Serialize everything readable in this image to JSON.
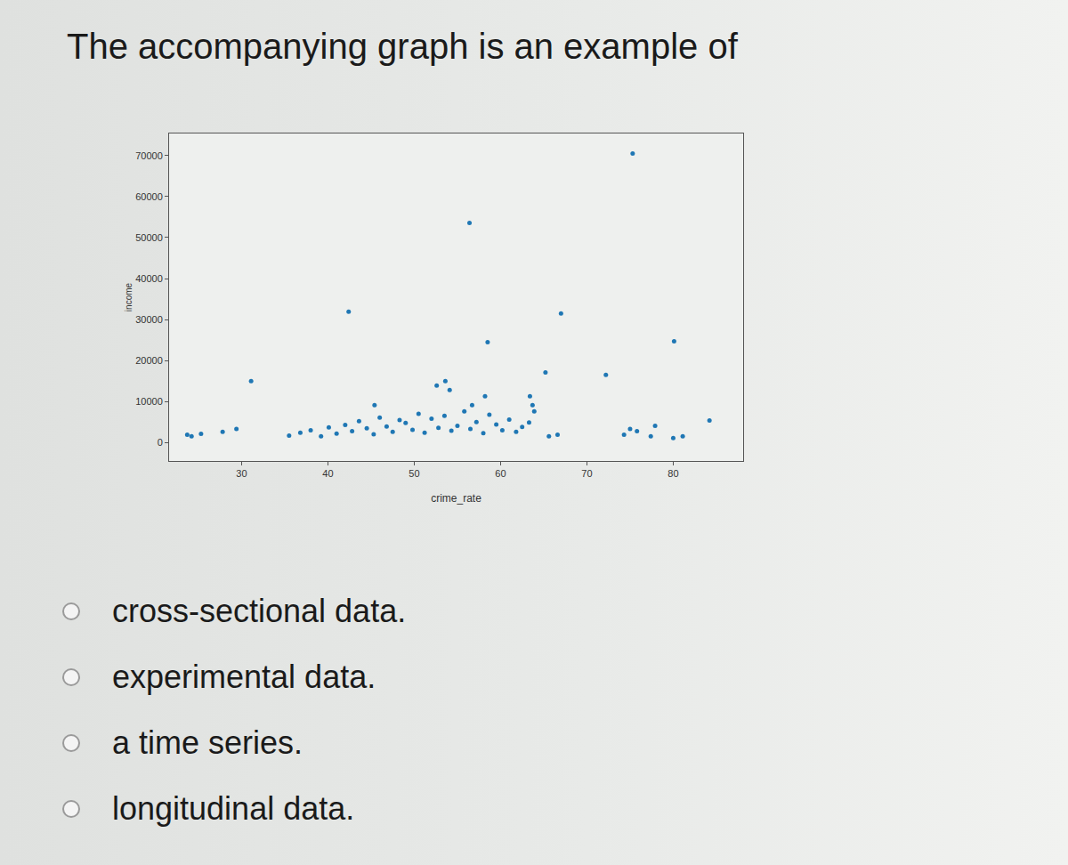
{
  "question": "The accompanying graph is an example of",
  "options": [
    "cross-sectional data.",
    "experimental data.",
    "a time series.",
    "longitudinal data."
  ],
  "chart_data": {
    "type": "scatter",
    "x_label": "crime_rate",
    "y_label": "income",
    "color": "#1f77b4",
    "marker": "circle",
    "grid": false,
    "xlim": [
      21.6,
      88.1
    ],
    "ylim": [
      -4500,
      75400
    ],
    "xticks": [
      30,
      40,
      50,
      60,
      70,
      80
    ],
    "yticks": [
      0,
      10000,
      20000,
      30000,
      40000,
      50000,
      60000,
      70000
    ],
    "x": [
      75.3,
      56.4,
      42.4,
      67.0,
      58.5,
      80.1,
      31.1,
      65.2,
      72.2,
      52.6,
      53.6,
      54.1,
      58.2,
      63.4,
      63.7,
      63.9,
      45.4,
      56.7,
      23.7,
      24.2,
      25.3,
      27.8,
      29.4,
      35.5,
      36.8,
      38.0,
      39.2,
      40.1,
      41.0,
      42.0,
      42.8,
      43.6,
      44.5,
      45.3,
      46.0,
      46.8,
      47.5,
      48.3,
      49.0,
      49.8,
      50.5,
      51.2,
      52.0,
      52.8,
      53.5,
      54.3,
      55.0,
      55.8,
      56.5,
      57.2,
      58.0,
      58.7,
      59.5,
      60.2,
      61.0,
      61.8,
      62.5,
      63.3,
      65.6,
      66.6,
      74.3,
      75.0,
      75.8,
      77.4,
      77.9,
      80.0,
      81.1,
      84.2
    ],
    "values": [
      70500,
      53600,
      31900,
      31500,
      24500,
      24700,
      15000,
      17100,
      16500,
      13900,
      15000,
      12800,
      11300,
      11300,
      9100,
      7600,
      9100,
      9100,
      1900,
      1500,
      2100,
      2600,
      3300,
      1700,
      2400,
      3000,
      1500,
      3700,
      2200,
      4300,
      2800,
      5200,
      3500,
      2000,
      6100,
      3900,
      2600,
      5500,
      4800,
      3100,
      7000,
      2400,
      5800,
      3600,
      6500,
      2900,
      4100,
      7600,
      3300,
      5000,
      2300,
      6800,
      4400,
      3000,
      5600,
      2600,
      3800,
      4900,
      1500,
      1900,
      1900,
      3300,
      2800,
      1500,
      4100,
      1100,
      1500,
      5400
    ]
  }
}
